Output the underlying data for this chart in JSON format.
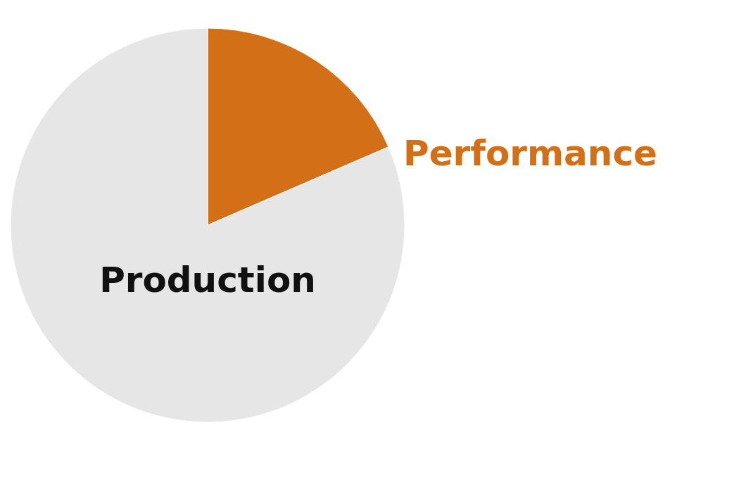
{
  "chart_data": {
    "type": "pie",
    "categories": [
      "Performance",
      "Production"
    ],
    "values": [
      18.5,
      81.5
    ],
    "colors": [
      "#d36f17",
      "#e6e6e6"
    ]
  }
}
